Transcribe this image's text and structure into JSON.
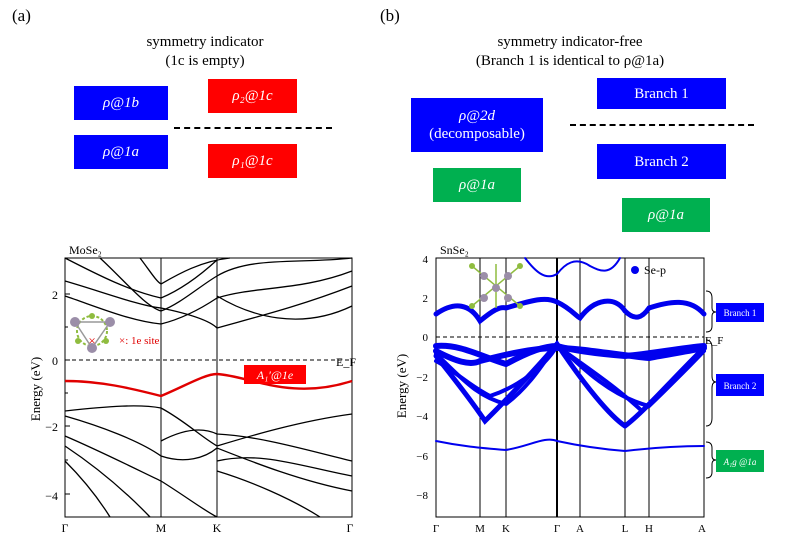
{
  "panel_a": {
    "label": "(a)",
    "title_line1": "symmetry indicator",
    "title_line2": "(1c is empty)",
    "boxes": {
      "rho_1b": "ρ@1b",
      "rho_1a": "ρ@1a",
      "rho2_1c": "ρ₂@1c",
      "rho1_1c": "ρ₁@1c"
    },
    "plot": {
      "material": "MoSe₂",
      "ylabel": "Energy (eV)",
      "y_ticks": [
        "2",
        "0",
        "−2",
        "−4"
      ],
      "k_labels": [
        "Γ",
        "M",
        "K",
        "Γ"
      ],
      "fermi_label": "E_F",
      "band_label": "A₁′@1e",
      "site_marker": "×",
      "site_label": "×: 1e site"
    }
  },
  "panel_b": {
    "label": "(b)",
    "title_line1": "symmetry indicator-free",
    "title_line2": "(Branch 1 is identical to ρ@1a)",
    "boxes": {
      "rho_2d_line1": "ρ@2d",
      "rho_2d_line2": "(decomposable)",
      "rho_1a_left": "ρ@1a",
      "branch1": "Branch 1",
      "branch2": "Branch 2",
      "rho_1a_right": "ρ@1a"
    },
    "plot": {
      "material": "SnSe₂",
      "ylabel": "Energy (eV)",
      "y_ticks": [
        "4",
        "2",
        "0",
        "−2",
        "−4",
        "−6",
        "−8"
      ],
      "k_labels": [
        "Γ",
        "M",
        "K",
        "Γ",
        "A",
        "L",
        "H",
        "A"
      ],
      "fermi_label": "E_F",
      "legend": "Se-p",
      "tag_branch1": "Branch 1",
      "tag_branch2": "Branch 2",
      "tag_a1g": "A₁g @1a"
    }
  },
  "colors": {
    "blue": "#0000ff",
    "red": "#ff0000",
    "green": "#00b050"
  }
}
